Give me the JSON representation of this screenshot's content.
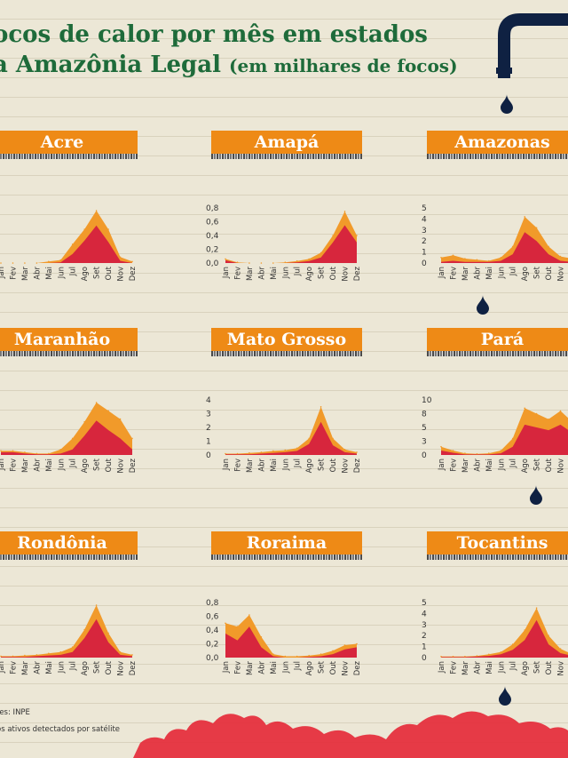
{
  "title": {
    "line1": "ocos de calor por mês em estados",
    "line2": "a Amazônia Legal",
    "line2_suffix": "(em milhares de focos)"
  },
  "footer": {
    "source": "tes: INPE",
    "note": "os ativos detectados por satélite"
  },
  "colors": {
    "outer": "#f19a2a",
    "inner": "#d7263d",
    "title_bg": "#ee8a16",
    "title_text": "#1e6b3a",
    "faucet": "#0f2142"
  },
  "months": [
    "Jan",
    "Fev",
    "Mar",
    "Abr",
    "Mai",
    "Jun",
    "Jul",
    "Ago",
    "Set",
    "Out",
    "Nov",
    "Dez"
  ],
  "panels": [
    {
      "name": "Acre",
      "yticks": []
    },
    {
      "name": "Amapá",
      "yticks": [
        "0,8",
        "0,6",
        "0,4",
        "0,2",
        "0,0"
      ]
    },
    {
      "name": "Amazonas",
      "yticks": [
        "5",
        "4",
        "3",
        "2",
        "1",
        "0"
      ]
    },
    {
      "name": "Maranhão",
      "yticks": []
    },
    {
      "name": "Mato Grosso",
      "yticks": [
        "4",
        "3",
        "2",
        "1",
        "0"
      ]
    },
    {
      "name": "Pará",
      "yticks": [
        "10",
        "8",
        "5",
        "3",
        "0"
      ]
    },
    {
      "name": "Rondônia",
      "yticks": []
    },
    {
      "name": "Roraima",
      "yticks": [
        "0,8",
        "0,6",
        "0,4",
        "0,2",
        "0,0"
      ]
    },
    {
      "name": "Tocantins",
      "yticks": [
        "5",
        "4",
        "3",
        "2",
        "1",
        "0"
      ]
    }
  ],
  "chart_data": [
    {
      "type": "area",
      "title": "Acre",
      "x": [
        "Jan",
        "Fev",
        "Mar",
        "Abr",
        "Mai",
        "Jun",
        "Jul",
        "Ago",
        "Set",
        "Out",
        "Nov",
        "Dez"
      ],
      "series": [
        {
          "values": [
            0,
            0,
            0,
            0,
            0.02,
            0.04,
            0.25,
            0.45,
            0.7,
            0.45,
            0.08,
            0.02
          ]
        },
        {
          "values": [
            0,
            0,
            0,
            0,
            0,
            0.01,
            0.12,
            0.3,
            0.5,
            0.28,
            0.03,
            0
          ]
        }
      ]
    },
    {
      "type": "area",
      "title": "Amapá",
      "x": [
        "Jan",
        "Fev",
        "Mar",
        "Abr",
        "Mai",
        "Jun",
        "Jul",
        "Ago",
        "Set",
        "Out",
        "Nov",
        "Dez"
      ],
      "ylim": [
        0,
        0.8
      ],
      "series": [
        {
          "values": [
            0.06,
            0.01,
            0,
            0,
            0,
            0.01,
            0.03,
            0.06,
            0.15,
            0.4,
            0.75,
            0.4
          ]
        },
        {
          "values": [
            0.04,
            0,
            0,
            0,
            0,
            0,
            0.01,
            0.03,
            0.08,
            0.3,
            0.55,
            0.3
          ]
        }
      ]
    },
    {
      "type": "area",
      "title": "Amazonas",
      "x": [
        "Jan",
        "Fev",
        "Mar",
        "Abr",
        "Mai",
        "Jun",
        "Jul",
        "Ago",
        "Set",
        "Out",
        "Nov",
        "Dez"
      ],
      "ylim": [
        0,
        5
      ],
      "series": [
        {
          "values": [
            0.5,
            0.7,
            0.4,
            0.3,
            0.2,
            0.5,
            1.5,
            4.2,
            3.2,
            1.5,
            0.6,
            0.4
          ]
        },
        {
          "values": [
            0.1,
            0.2,
            0.1,
            0.1,
            0.1,
            0.2,
            0.8,
            2.8,
            2.0,
            0.8,
            0.2,
            0.1
          ]
        }
      ]
    },
    {
      "type": "area",
      "title": "Maranhão",
      "x": [
        "Jan",
        "Fev",
        "Mar",
        "Abr",
        "Mai",
        "Jun",
        "Jul",
        "Ago",
        "Set",
        "Out",
        "Nov",
        "Dez"
      ],
      "series": [
        {
          "values": [
            0.3,
            0.3,
            0.2,
            0.1,
            0.1,
            0.4,
            1.2,
            2.4,
            3.8,
            3.2,
            2.6,
            1.2
          ]
        },
        {
          "values": [
            0.2,
            0.2,
            0.1,
            0.05,
            0.05,
            0.1,
            0.4,
            1.4,
            2.5,
            1.8,
            1.2,
            0.4
          ]
        }
      ]
    },
    {
      "type": "area",
      "title": "Mato Grosso",
      "x": [
        "Jan",
        "Fev",
        "Mar",
        "Abr",
        "Mai",
        "Jun",
        "Jul",
        "Ago",
        "Set",
        "Out",
        "Nov",
        "Dez"
      ],
      "ylim": [
        0,
        4
      ],
      "series": [
        {
          "values": [
            0.1,
            0.1,
            0.15,
            0.2,
            0.3,
            0.35,
            0.5,
            1.2,
            3.5,
            1.2,
            0.4,
            0.2
          ]
        },
        {
          "values": [
            0.05,
            0.05,
            0.05,
            0.1,
            0.15,
            0.2,
            0.3,
            0.8,
            2.4,
            0.7,
            0.2,
            0.1
          ]
        }
      ]
    },
    {
      "type": "area",
      "title": "Pará",
      "x": [
        "Jan",
        "Fev",
        "Mar",
        "Abr",
        "Mai",
        "Jun",
        "Jul",
        "Ago",
        "Set",
        "Out",
        "Nov",
        "Dez"
      ],
      "ylim": [
        0,
        10
      ],
      "series": [
        {
          "values": [
            1.5,
            0.8,
            0.3,
            0.2,
            0.3,
            0.8,
            3.0,
            8.5,
            7.5,
            6.5,
            8.0,
            6.0
          ]
        },
        {
          "values": [
            0.8,
            0.4,
            0.1,
            0.1,
            0.1,
            0.3,
            1.5,
            5.5,
            5.0,
            4.5,
            5.5,
            4.0
          ]
        }
      ]
    },
    {
      "type": "area",
      "title": "Rondônia",
      "x": [
        "Jan",
        "Fev",
        "Mar",
        "Abr",
        "Mai",
        "Jun",
        "Jul",
        "Ago",
        "Set",
        "Out",
        "Nov",
        "Dez"
      ],
      "series": [
        {
          "values": [
            0.02,
            0.02,
            0.03,
            0.04,
            0.06,
            0.08,
            0.15,
            0.4,
            0.75,
            0.35,
            0.08,
            0.04
          ]
        },
        {
          "values": [
            0.01,
            0.01,
            0.01,
            0.02,
            0.03,
            0.04,
            0.08,
            0.28,
            0.55,
            0.22,
            0.04,
            0.02
          ]
        }
      ]
    },
    {
      "type": "area",
      "title": "Roraima",
      "x": [
        "Jan",
        "Fev",
        "Mar",
        "Abr",
        "Mai",
        "Jun",
        "Jul",
        "Ago",
        "Set",
        "Out",
        "Nov",
        "Dez"
      ],
      "ylim": [
        0,
        0.8
      ],
      "series": [
        {
          "values": [
            0.5,
            0.45,
            0.62,
            0.3,
            0.05,
            0.02,
            0.02,
            0.03,
            0.05,
            0.1,
            0.18,
            0.2
          ]
        },
        {
          "values": [
            0.35,
            0.25,
            0.45,
            0.15,
            0.02,
            0,
            0,
            0.01,
            0.02,
            0.05,
            0.12,
            0.15
          ]
        }
      ]
    },
    {
      "type": "area",
      "title": "Tocantins",
      "x": [
        "Jan",
        "Fev",
        "Mar",
        "Abr",
        "Mai",
        "Jun",
        "Jul",
        "Ago",
        "Set",
        "Out",
        "Nov",
        "Dez"
      ],
      "ylim": [
        0,
        5
      ],
      "series": [
        {
          "values": [
            0.1,
            0.1,
            0.1,
            0.15,
            0.3,
            0.5,
            1.2,
            2.5,
            4.5,
            2.0,
            0.8,
            0.3
          ]
        },
        {
          "values": [
            0.05,
            0.05,
            0.05,
            0.1,
            0.15,
            0.3,
            0.7,
            1.6,
            3.4,
            1.2,
            0.4,
            0.15
          ]
        }
      ]
    }
  ]
}
